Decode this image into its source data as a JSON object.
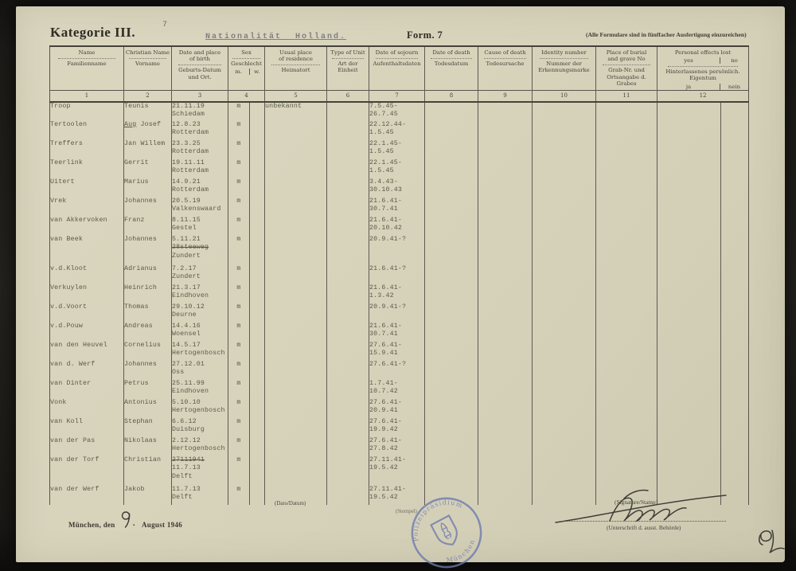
{
  "page": {
    "category": "Kategorie III.",
    "page_number": "7",
    "nationality_title": "Nationalität Holland.",
    "form_label": "Form. 7",
    "form_note": "(Alle Formulare sind in fünffacher Ausfertigung einzureichen)"
  },
  "table": {
    "columns": [
      {
        "num": "1",
        "en": [
          "Name"
        ],
        "de": [
          "Familienname"
        ]
      },
      {
        "num": "2",
        "en": [
          "Christian Name"
        ],
        "de": [
          "Vorname"
        ]
      },
      {
        "num": "3",
        "en": [
          "Date and place",
          "of birth"
        ],
        "de": [
          "Geburts-Datum",
          "und Ort."
        ]
      },
      {
        "num": "4",
        "en": [
          "Sex"
        ],
        "de": [
          "Geschlecht"
        ],
        "de_split": {
          "left": "m.",
          "right": "w."
        },
        "colspan": 2
      },
      {
        "num": "5",
        "en": [
          "Usual place",
          "of residence"
        ],
        "de": [
          "Heimatort"
        ]
      },
      {
        "num": "6",
        "en": [
          "Type of Unit"
        ],
        "de": [
          "Art der Einheit"
        ]
      },
      {
        "num": "7",
        "en": [
          "Date of sojourn"
        ],
        "de": [
          "Aufenthaltsdaten"
        ]
      },
      {
        "num": "8",
        "en": [
          "Date of death"
        ],
        "de": [
          "Todesdatum"
        ]
      },
      {
        "num": "9",
        "en": [
          "Cause of death"
        ],
        "de": [
          "Todesursache"
        ]
      },
      {
        "num": "10",
        "en": [
          "Identity number"
        ],
        "de": [
          "Nummer der",
          "Erkennungsmarke"
        ]
      },
      {
        "num": "11",
        "en": [
          "Place of burial",
          "and grave No"
        ],
        "de": [
          "Grab-Nr. und",
          "Ortsangabe d. Grabes"
        ]
      },
      {
        "num": "12",
        "en": [
          "Personal effects lost"
        ],
        "en_split": {
          "left": "yes",
          "right": "no"
        },
        "de": [
          "Hinterlassenes persönlich. Eigentum"
        ],
        "de_split": {
          "left": "ja",
          "right": "nein"
        },
        "colspan": 2
      }
    ],
    "rows": [
      {
        "name": "Troop",
        "vorname": "Teunis",
        "birth": [
          "21.11.19",
          "Schiedam"
        ],
        "sex": "m",
        "heimatort": "unbekannt",
        "sojourn": [
          "7.5.45-",
          "26.7.45"
        ]
      },
      {
        "name": "Tertoolen",
        "vorname": "Aug Josef",
        "vorname_u": "Aug",
        "birth": [
          "12.8.23",
          "Rotterdam"
        ],
        "sex": "m",
        "heimatort": "",
        "sojourn": [
          "22.12.44-",
          "1.5.45"
        ]
      },
      {
        "name": "Treffers",
        "vorname": "Jan Willem",
        "birth": [
          "23.3.25",
          "Rotterdam"
        ],
        "sex": "m",
        "heimatort": "",
        "sojourn": [
          "22.1.45-",
          "1.5.45"
        ]
      },
      {
        "name": "Teerlink",
        "vorname": "Gerrit",
        "birth": [
          "19.11.11",
          "Rotterdam"
        ],
        "sex": "m",
        "heimatort": "",
        "sojourn": [
          "22.1.45-",
          "1.5.45"
        ]
      },
      {
        "name": "Uitert",
        "vorname": "Marius",
        "birth": [
          "14.9.21",
          "Rotterdam"
        ],
        "sex": "m",
        "heimatort": "",
        "sojourn": [
          "3.4.43-",
          "30.10.43"
        ]
      },
      {
        "name": "Vrek",
        "vorname": "Johannes",
        "birth": [
          "20.5.19",
          "Valkenswaard"
        ],
        "sex": "m",
        "heimatort": "",
        "sojourn": [
          "21.6.41-",
          "30.7.41"
        ]
      },
      {
        "name": "van Akkervoken",
        "vorname": "Franz",
        "birth": [
          "8.11.15",
          "Gestel"
        ],
        "sex": "m",
        "heimatort": "",
        "sojourn": [
          "21.6.41-",
          "20.10.42"
        ]
      },
      {
        "name": "van Beek",
        "vorname": "Johannes",
        "birth": [
          "5.11.21",
          {
            "t": "28steeweg",
            "strike": true
          },
          "Zundert"
        ],
        "sex": "m",
        "heimatort": "",
        "sojourn": [
          "20.9.41-?"
        ],
        "h": 37
      },
      {
        "name": "v.d.Kloot",
        "vorname": "Adrianus",
        "birth": [
          "7.2.17",
          "Zundert"
        ],
        "sex": "m",
        "heimatort": "",
        "sojourn": [
          "21.6.41-?"
        ]
      },
      {
        "name": "Verkuylen",
        "vorname": "Heinrich",
        "birth": [
          "21.3.17",
          "Eindhoven"
        ],
        "sex": "m",
        "heimatort": "",
        "sojourn": [
          "21.6.41-",
          "1.3.42"
        ]
      },
      {
        "name": "v.d.Voort",
        "vorname": "Thomas",
        "birth": [
          "29.10.12",
          "Deurne"
        ],
        "sex": "m",
        "heimatort": "",
        "sojourn": [
          "20.9.41-?"
        ]
      },
      {
        "name": "v.d.Pouw",
        "vorname": "Andreas",
        "birth": [
          "14.4.16",
          "Woensel"
        ],
        "sex": "m",
        "heimatort": "",
        "sojourn": [
          "21.6.41-",
          "30.7.41"
        ]
      },
      {
        "name": "van den Heuvel",
        "vorname": "Cornelius",
        "birth": [
          "14.5.17",
          "Hertogenbosch"
        ],
        "sex": "m",
        "heimatort": "",
        "sojourn": [
          "27.6.41-",
          "15.9.41"
        ]
      },
      {
        "name": "van d. Werf",
        "vorname": "Johannes",
        "birth": [
          "27.12.01",
          "Oss"
        ],
        "sex": "m",
        "heimatort": "",
        "sojourn": [
          "27.6.41-?"
        ]
      },
      {
        "name": "van Dinter",
        "vorname": "Petrus",
        "birth": [
          "25.11.99",
          "Eindhoven"
        ],
        "sex": "m",
        "heimatort": "",
        "sojourn": [
          "1.7.41-",
          "10.7.42"
        ]
      },
      {
        "name": "Vonk",
        "vorname": "Antonius",
        "birth": [
          "5.10.10",
          "Hertogenbosch"
        ],
        "sex": "m",
        "heimatort": "",
        "sojourn": [
          "27.6.41-",
          "20.9.41"
        ]
      },
      {
        "name": "van Koll",
        "vorname": "Stephan",
        "birth": [
          "6.6.12",
          "Duisburg"
        ],
        "sex": "m",
        "heimatort": "",
        "sojourn": [
          "27.6.41-",
          "19.9.42"
        ]
      },
      {
        "name": "van der Pas",
        "vorname": "Nikolaas",
        "birth": [
          "2.12.12",
          "Hertogenbosch"
        ],
        "sex": "m",
        "heimatort": "",
        "sojourn": [
          "27.6.41-",
          "27.8.42"
        ]
      },
      {
        "name": "van der Torf",
        "vorname": "Christian",
        "birth": [
          {
            "t": "27111941",
            "strike": true
          },
          "11.7.13",
          "Delft"
        ],
        "sex": "m",
        "heimatort": "",
        "sojourn": [
          "27.11.41-",
          "19.5.42"
        ],
        "h": 37
      },
      {
        "name": "van der Werf",
        "vorname": "Jakob",
        "birth": [
          "11.7.13",
          "Delft"
        ],
        "sex": "m",
        "heimatort": "",
        "sojourn": [
          "27.11.41-",
          "19.5.42"
        ]
      }
    ]
  },
  "footer": {
    "dato_label": "(Dato/Datum)",
    "place_date": "München, den",
    "handwritten_day": "9.",
    "date_rest": "August 1946",
    "stempel_label": "(Stempel)",
    "signature_stamp_label": "(Signature/Stamp)",
    "unterschrift_label": "(Unterschrift d. ausst. Behörde)",
    "corner_mark": "6L",
    "stamp": {
      "text_top": "Polizeipräsidium",
      "text_bottom": "München",
      "color": "#6d79ae"
    }
  }
}
